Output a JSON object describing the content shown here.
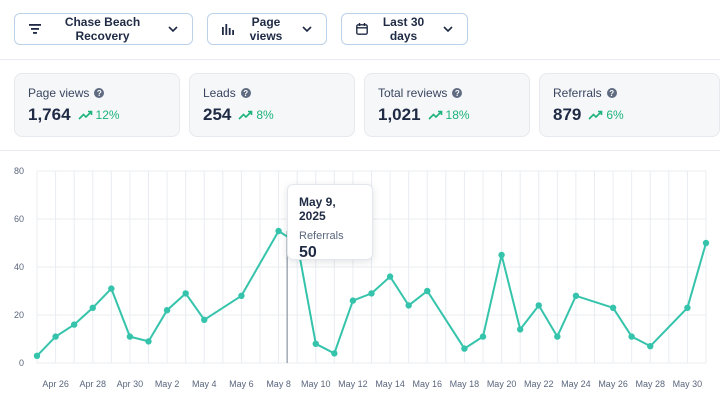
{
  "filters": {
    "property_label": "Chase Beach Recovery",
    "metric_label": "Page views",
    "range_label": "Last 30 days"
  },
  "stats": [
    {
      "label": "Page views",
      "value": "1,764",
      "change": "12%"
    },
    {
      "label": "Leads",
      "value": "254",
      "change": "8%"
    },
    {
      "label": "Total reviews",
      "value": "1,021",
      "change": "18%"
    },
    {
      "label": "Referrals",
      "value": "879",
      "change": "6%"
    }
  ],
  "colors": {
    "accent": "#35c4ab",
    "positive": "#1db37a",
    "grid": "#e9edf2"
  },
  "tooltip": {
    "date": "May 9, 2025",
    "series": "Referrals",
    "value": "50"
  },
  "chart_data": {
    "type": "line",
    "title": "",
    "xlabel": "",
    "ylabel": "",
    "ylim": [
      0,
      80
    ],
    "yticks": [
      0,
      20,
      40,
      60,
      80
    ],
    "x_tick_labels": [
      "Apr 26",
      "Apr 28",
      "Apr 30",
      "May 2",
      "May 4",
      "May 6",
      "May 8",
      "May 10",
      "May 12",
      "May 14",
      "May 16",
      "May 18",
      "May 20",
      "May 22",
      "May 24",
      "May 26",
      "May 28",
      "May 30"
    ],
    "grid": true,
    "highlight_index": 15,
    "series": [
      {
        "name": "Referrals",
        "x": [
          "Apr 25",
          "Apr 26",
          "Apr 27",
          "Apr 28",
          "Apr 29",
          "Apr 30",
          "May 1",
          "May 2",
          "May 3",
          "May 4",
          "May 6",
          "May 8",
          "May 9",
          "May 10",
          "May 11",
          "May 12",
          "May 13",
          "May 14",
          "May 15",
          "May 16",
          "May 18",
          "May 19",
          "May 20",
          "May 21",
          "May 22",
          "May 23",
          "May 24",
          "May 26",
          "May 27",
          "May 28",
          "May 30",
          "May 31"
        ],
        "values": [
          3,
          11,
          16,
          23,
          31,
          11,
          9,
          22,
          29,
          18,
          28,
          55,
          50,
          8,
          4,
          26,
          29,
          36,
          24,
          30,
          6,
          11,
          45,
          14,
          24,
          11,
          28,
          23,
          11,
          7,
          23,
          50
        ]
      }
    ]
  }
}
